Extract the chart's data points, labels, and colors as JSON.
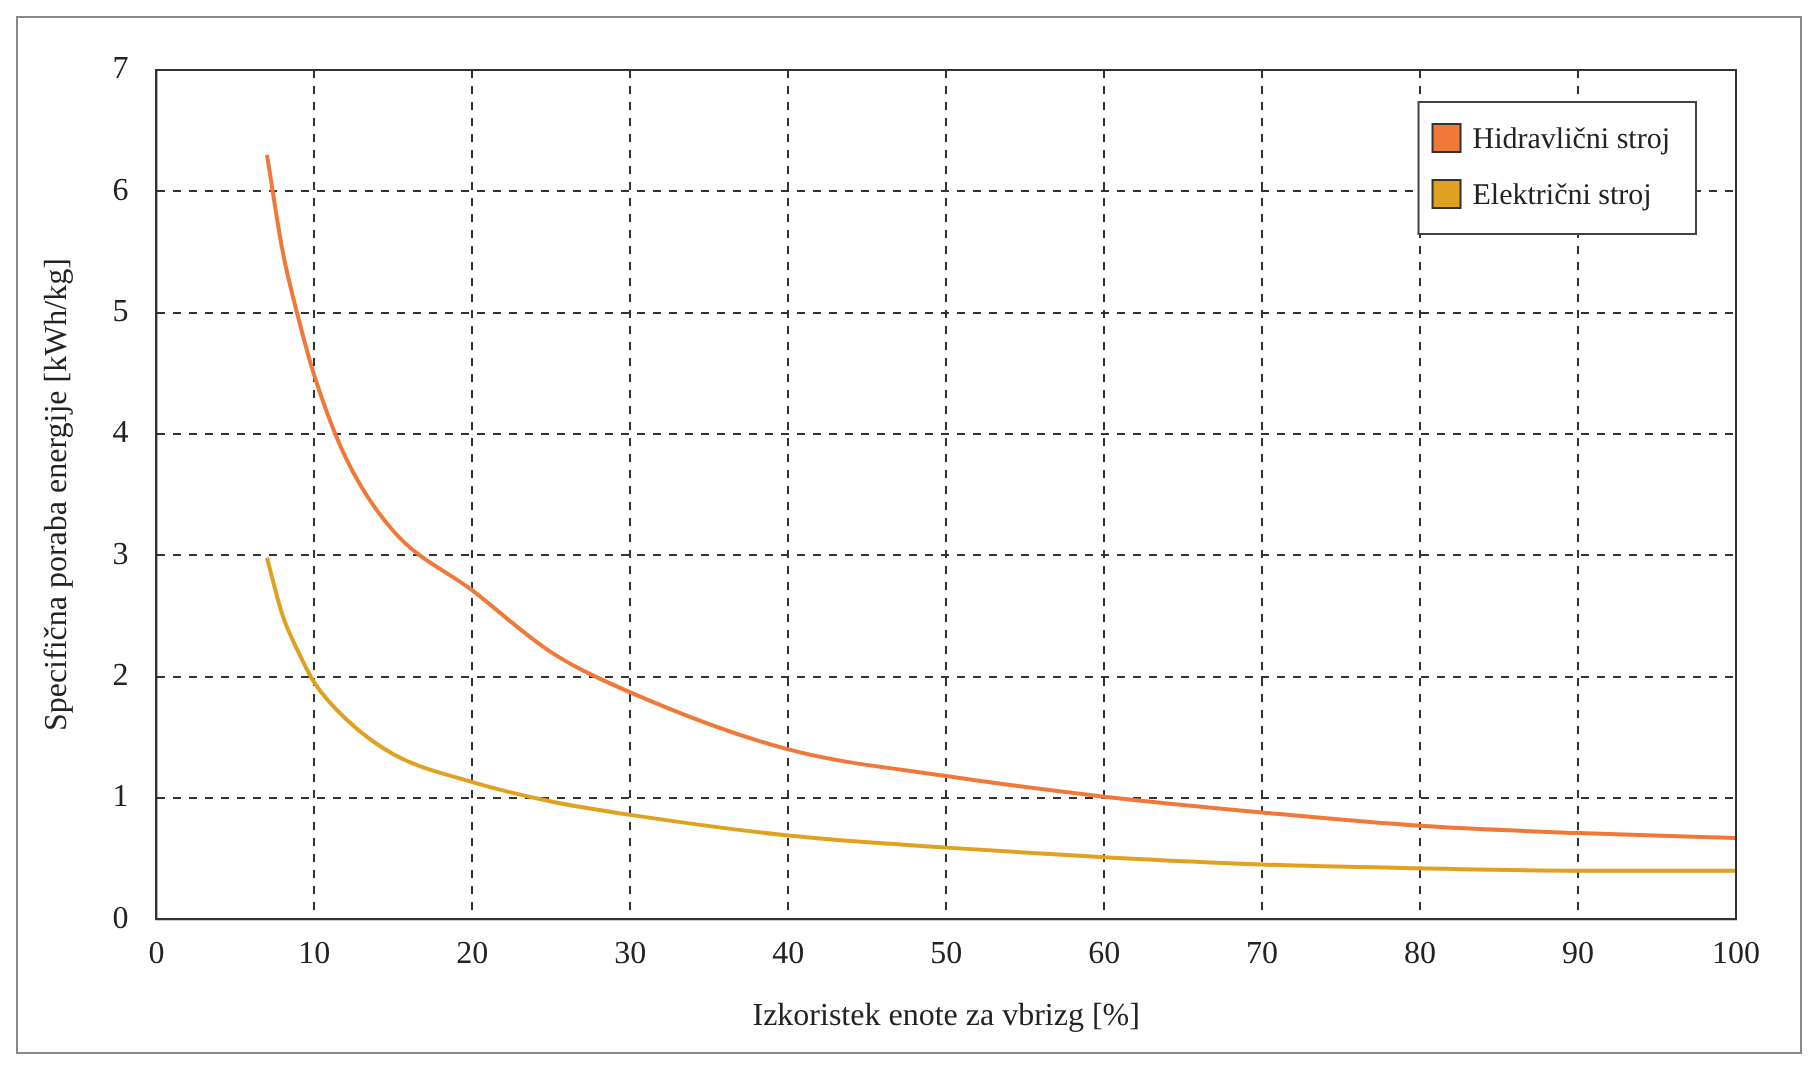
{
  "chart_data": {
    "type": "line",
    "xlabel": "Izkoristek enote za vbrizg [%]",
    "ylabel": "Specifična poraba energije [kWh/kg]",
    "xlim": [
      0,
      100
    ],
    "xticks": [
      0,
      10,
      20,
      30,
      40,
      50,
      60,
      70,
      80,
      90,
      100
    ],
    "ylim": [
      0,
      7
    ],
    "yticks": [
      0,
      1,
      2,
      3,
      4,
      5,
      6,
      7
    ],
    "grid": true,
    "line_style": "solid",
    "marker": "none",
    "legend": "top right",
    "series": [
      {
        "name": "Hidravlični stroj",
        "color": "#f07838",
        "x": [
          7,
          8,
          9,
          10,
          12,
          15,
          20,
          25,
          30,
          40,
          50,
          60,
          70,
          80,
          90,
          100
        ],
        "values": [
          6.3,
          5.5,
          4.95,
          4.48,
          3.8,
          3.2,
          2.71,
          2.2,
          1.87,
          1.4,
          1.18,
          1.01,
          0.88,
          0.77,
          0.71,
          0.67
        ]
      },
      {
        "name": "Električni stroj",
        "color": "#e0a020",
        "x": [
          7,
          8,
          9,
          10,
          12,
          15,
          20,
          25,
          30,
          40,
          50,
          60,
          70,
          80,
          90,
          100
        ],
        "values": [
          2.98,
          2.5,
          2.2,
          1.95,
          1.65,
          1.36,
          1.13,
          0.97,
          0.86,
          0.69,
          0.59,
          0.51,
          0.45,
          0.42,
          0.4,
          0.4
        ]
      }
    ]
  }
}
